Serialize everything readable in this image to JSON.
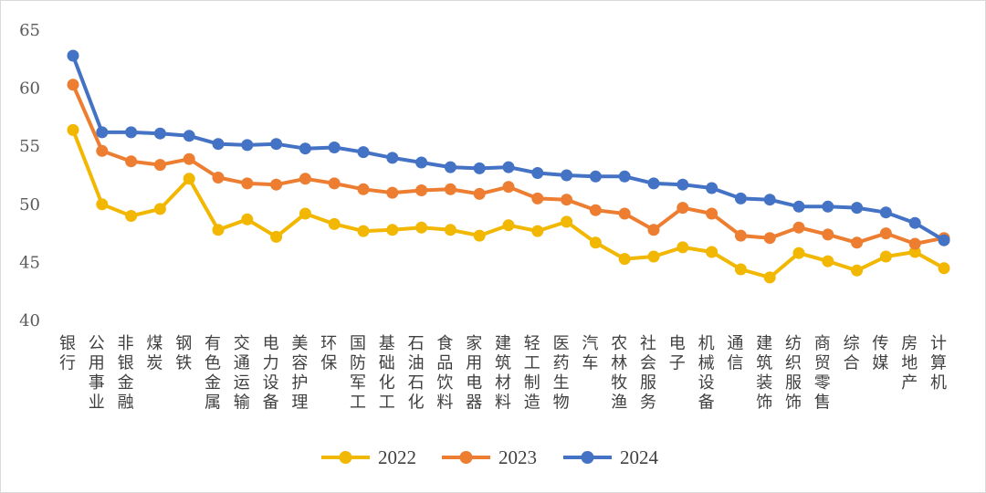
{
  "chart_data": {
    "type": "line",
    "title": "",
    "xlabel": "",
    "ylabel": "",
    "ylim": [
      40,
      65
    ],
    "yticks": [
      "40",
      "45",
      "50",
      "55",
      "60",
      "65"
    ],
    "grid": false,
    "legend_position": "bottom",
    "categories": [
      "银行",
      "公用事业",
      "非银金融",
      "煤炭",
      "钢铁",
      "有色金属",
      "交通运输",
      "电力设备",
      "美容护理",
      "环保",
      "国防军工",
      "基础化工",
      "石油石化",
      "食品饮料",
      "家用电器",
      "建筑材料",
      "轻工制造",
      "医药生物",
      "汽车",
      "农林牧渔",
      "社会服务",
      "电子",
      "机械设备",
      "通信",
      "建筑装饰",
      "纺织服饰",
      "商贸零售",
      "综合",
      "传媒",
      "房地产",
      "计算机"
    ],
    "series": [
      {
        "name": "2022",
        "color": "#f2b700",
        "values": [
          56.4,
          50.0,
          49.0,
          49.6,
          52.2,
          47.8,
          48.7,
          47.2,
          49.2,
          48.3,
          47.7,
          47.8,
          48.0,
          47.8,
          47.3,
          48.2,
          47.7,
          48.5,
          46.7,
          45.3,
          45.5,
          46.3,
          45.9,
          44.4,
          43.7,
          45.8,
          45.1,
          44.3,
          45.5,
          45.9,
          44.5
        ]
      },
      {
        "name": "2023",
        "color": "#ed7d31",
        "values": [
          60.3,
          54.6,
          53.7,
          53.4,
          53.9,
          52.3,
          51.8,
          51.7,
          52.2,
          51.8,
          51.3,
          51.0,
          51.2,
          51.3,
          50.9,
          51.5,
          50.5,
          50.4,
          49.5,
          49.2,
          47.8,
          49.7,
          49.2,
          47.3,
          47.1,
          48.0,
          47.4,
          46.7,
          47.5,
          46.6,
          47.1
        ]
      },
      {
        "name": "2024",
        "color": "#4472c4",
        "values": [
          62.8,
          56.2,
          56.2,
          56.1,
          55.9,
          55.2,
          55.1,
          55.2,
          54.8,
          54.9,
          54.5,
          54.0,
          53.6,
          53.2,
          53.1,
          53.2,
          52.7,
          52.5,
          52.4,
          52.4,
          51.8,
          51.7,
          51.4,
          50.5,
          50.4,
          49.8,
          49.8,
          49.7,
          49.3,
          48.4,
          46.9
        ]
      }
    ]
  }
}
